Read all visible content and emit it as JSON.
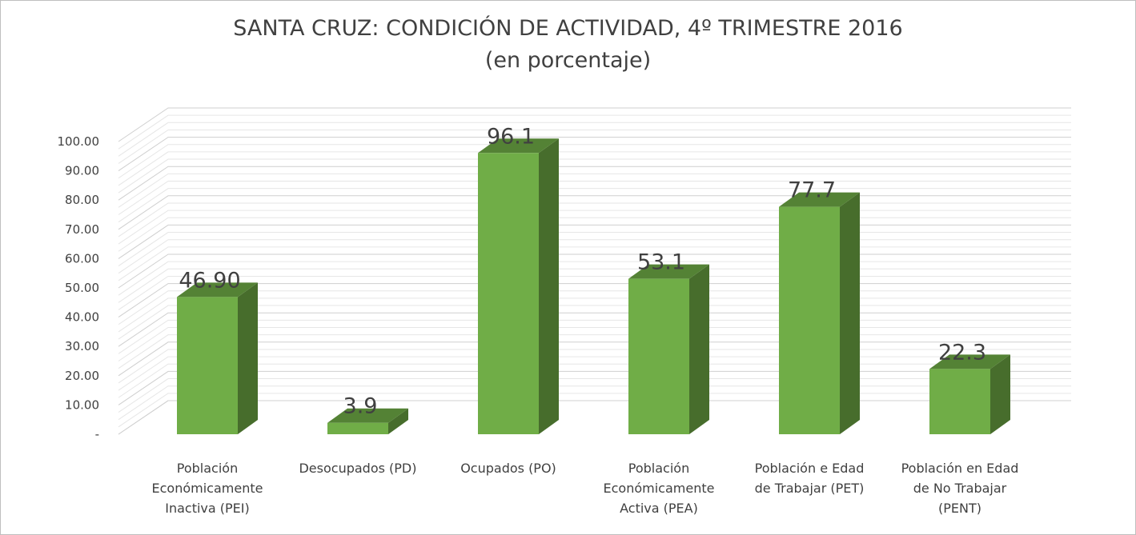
{
  "chart_data": {
    "type": "bar",
    "title": "SANTA CRUZ: CONDICIÓN DE ACTIVIDAD, 4º TRIMESTRE 2016",
    "subtitle": "(en porcentaje)",
    "categories": [
      [
        "Población",
        "Económicamente",
        "Inactiva (PEI)"
      ],
      [
        "Desocupados (PD)"
      ],
      [
        "Ocupados (PO)"
      ],
      [
        "Población",
        "Económicamente",
        "Activa (PEA)"
      ],
      [
        "Población e Edad",
        "de Trabajar (PET)"
      ],
      [
        "Población en Edad",
        "de No Trabajar",
        "(PENT)"
      ]
    ],
    "values": [
      46.9,
      3.9,
      96.1,
      53.1,
      77.7,
      22.3
    ],
    "data_labels": [
      "46.90",
      "3.9",
      "96.1",
      "53.1",
      "77.7",
      "22.3"
    ],
    "yticks": [
      "-",
      "10.00",
      "20.00",
      "30.00",
      "40.00",
      "50.00",
      "60.00",
      "70.00",
      "80.00",
      "90.00",
      "100.00"
    ],
    "ylim": [
      0,
      100
    ],
    "grid": true,
    "style": "3d-column",
    "colors": {
      "front": "#70AD47",
      "side": "#476D2C",
      "top": "#548235",
      "grid": "#d9d9d9"
    }
  }
}
